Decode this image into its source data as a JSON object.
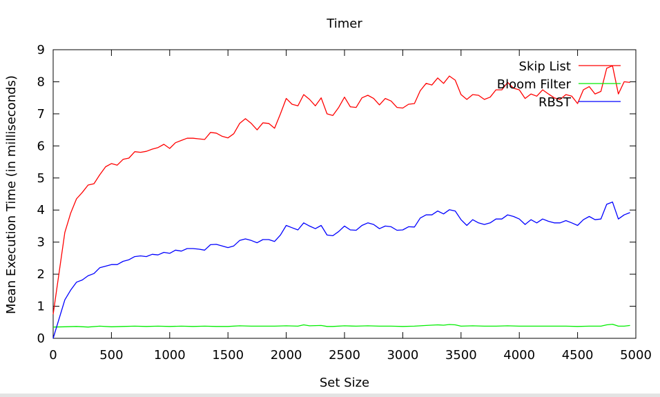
{
  "chart_data": {
    "type": "line",
    "title": "Timer",
    "xlabel": "Set Size",
    "ylabel": "Mean Execution Time (in milliseconds)",
    "xlim": [
      0,
      5000
    ],
    "ylim": [
      0,
      9
    ],
    "xticks": [
      0,
      500,
      1000,
      1500,
      2000,
      2500,
      3000,
      3500,
      4000,
      4500,
      5000
    ],
    "yticks": [
      0,
      1,
      2,
      3,
      4,
      5,
      6,
      7,
      8,
      9
    ],
    "xtick_labels": [
      "0",
      "500",
      "1000",
      "1500",
      "2000",
      "2500",
      "3000",
      "3500",
      "4000",
      "4500",
      "5000"
    ],
    "ytick_labels": [
      "0",
      "1",
      "2",
      "3",
      "4",
      "5",
      "6",
      "7",
      "8",
      "9"
    ],
    "grid": false,
    "legend_position": "top-right",
    "series": [
      {
        "name": "Skip List",
        "color": "#ff0000",
        "points": [
          [
            0,
            0.75
          ],
          [
            100,
            3.3
          ],
          [
            150,
            3.9
          ],
          [
            200,
            4.35
          ],
          [
            250,
            4.55
          ],
          [
            300,
            4.78
          ],
          [
            350,
            4.82
          ],
          [
            400,
            5.1
          ],
          [
            450,
            5.35
          ],
          [
            500,
            5.45
          ],
          [
            550,
            5.4
          ],
          [
            600,
            5.58
          ],
          [
            650,
            5.62
          ],
          [
            700,
            5.82
          ],
          [
            750,
            5.8
          ],
          [
            800,
            5.83
          ],
          [
            850,
            5.9
          ],
          [
            900,
            5.95
          ],
          [
            950,
            6.05
          ],
          [
            1000,
            5.92
          ],
          [
            1050,
            6.1
          ],
          [
            1100,
            6.17
          ],
          [
            1150,
            6.24
          ],
          [
            1200,
            6.24
          ],
          [
            1250,
            6.22
          ],
          [
            1300,
            6.2
          ],
          [
            1350,
            6.42
          ],
          [
            1400,
            6.4
          ],
          [
            1450,
            6.3
          ],
          [
            1500,
            6.25
          ],
          [
            1550,
            6.38
          ],
          [
            1600,
            6.7
          ],
          [
            1650,
            6.85
          ],
          [
            1700,
            6.7
          ],
          [
            1750,
            6.5
          ],
          [
            1800,
            6.72
          ],
          [
            1850,
            6.7
          ],
          [
            1900,
            6.55
          ],
          [
            1950,
            7.0
          ],
          [
            2000,
            7.48
          ],
          [
            2050,
            7.3
          ],
          [
            2100,
            7.25
          ],
          [
            2150,
            7.6
          ],
          [
            2200,
            7.45
          ],
          [
            2250,
            7.25
          ],
          [
            2300,
            7.5
          ],
          [
            2350,
            7.0
          ],
          [
            2400,
            6.95
          ],
          [
            2450,
            7.2
          ],
          [
            2500,
            7.52
          ],
          [
            2550,
            7.22
          ],
          [
            2600,
            7.2
          ],
          [
            2650,
            7.5
          ],
          [
            2700,
            7.58
          ],
          [
            2750,
            7.48
          ],
          [
            2800,
            7.28
          ],
          [
            2850,
            7.48
          ],
          [
            2900,
            7.4
          ],
          [
            2950,
            7.2
          ],
          [
            3000,
            7.18
          ],
          [
            3050,
            7.3
          ],
          [
            3100,
            7.32
          ],
          [
            3150,
            7.72
          ],
          [
            3200,
            7.95
          ],
          [
            3250,
            7.9
          ],
          [
            3300,
            8.12
          ],
          [
            3350,
            7.95
          ],
          [
            3400,
            8.18
          ],
          [
            3450,
            8.05
          ],
          [
            3500,
            7.6
          ],
          [
            3550,
            7.45
          ],
          [
            3600,
            7.6
          ],
          [
            3650,
            7.58
          ],
          [
            3700,
            7.45
          ],
          [
            3750,
            7.52
          ],
          [
            3800,
            7.75
          ],
          [
            3850,
            7.75
          ],
          [
            3900,
            7.98
          ],
          [
            3950,
            7.8
          ],
          [
            4000,
            7.75
          ],
          [
            4050,
            7.48
          ],
          [
            4100,
            7.62
          ],
          [
            4150,
            7.55
          ],
          [
            4200,
            7.75
          ],
          [
            4250,
            7.62
          ],
          [
            4300,
            7.5
          ],
          [
            4350,
            7.45
          ],
          [
            4400,
            7.6
          ],
          [
            4450,
            7.55
          ],
          [
            4500,
            7.32
          ],
          [
            4550,
            7.75
          ],
          [
            4600,
            7.85
          ],
          [
            4650,
            7.62
          ],
          [
            4700,
            7.7
          ],
          [
            4750,
            8.42
          ],
          [
            4800,
            8.5
          ],
          [
            4850,
            7.62
          ],
          [
            4900,
            8.0
          ],
          [
            4950,
            7.98
          ]
        ]
      },
      {
        "name": "Bloom Filter",
        "color": "#00ee00",
        "points": [
          [
            0,
            0.35
          ],
          [
            100,
            0.36
          ],
          [
            200,
            0.37
          ],
          [
            300,
            0.35
          ],
          [
            400,
            0.38
          ],
          [
            500,
            0.36
          ],
          [
            600,
            0.37
          ],
          [
            700,
            0.38
          ],
          [
            800,
            0.37
          ],
          [
            900,
            0.38
          ],
          [
            1000,
            0.37
          ],
          [
            1100,
            0.38
          ],
          [
            1200,
            0.37
          ],
          [
            1300,
            0.38
          ],
          [
            1400,
            0.37
          ],
          [
            1500,
            0.37
          ],
          [
            1600,
            0.39
          ],
          [
            1700,
            0.38
          ],
          [
            1800,
            0.38
          ],
          [
            1900,
            0.38
          ],
          [
            2000,
            0.39
          ],
          [
            2100,
            0.38
          ],
          [
            2150,
            0.42
          ],
          [
            2200,
            0.39
          ],
          [
            2300,
            0.4
          ],
          [
            2350,
            0.37
          ],
          [
            2400,
            0.37
          ],
          [
            2500,
            0.39
          ],
          [
            2600,
            0.38
          ],
          [
            2700,
            0.39
          ],
          [
            2800,
            0.38
          ],
          [
            2900,
            0.38
          ],
          [
            3000,
            0.37
          ],
          [
            3100,
            0.38
          ],
          [
            3200,
            0.4
          ],
          [
            3300,
            0.42
          ],
          [
            3350,
            0.41
          ],
          [
            3400,
            0.43
          ],
          [
            3450,
            0.42
          ],
          [
            3500,
            0.38
          ],
          [
            3600,
            0.39
          ],
          [
            3700,
            0.38
          ],
          [
            3800,
            0.38
          ],
          [
            3900,
            0.39
          ],
          [
            4000,
            0.38
          ],
          [
            4100,
            0.38
          ],
          [
            4200,
            0.38
          ],
          [
            4300,
            0.38
          ],
          [
            4400,
            0.38
          ],
          [
            4500,
            0.37
          ],
          [
            4600,
            0.38
          ],
          [
            4700,
            0.38
          ],
          [
            4750,
            0.42
          ],
          [
            4800,
            0.44
          ],
          [
            4850,
            0.38
          ],
          [
            4900,
            0.38
          ],
          [
            4950,
            0.4
          ]
        ]
      },
      {
        "name": "RBST",
        "color": "#0000ff",
        "points": [
          [
            0,
            0.0
          ],
          [
            100,
            1.2
          ],
          [
            150,
            1.5
          ],
          [
            200,
            1.75
          ],
          [
            250,
            1.82
          ],
          [
            300,
            1.95
          ],
          [
            350,
            2.02
          ],
          [
            400,
            2.2
          ],
          [
            450,
            2.25
          ],
          [
            500,
            2.3
          ],
          [
            550,
            2.3
          ],
          [
            600,
            2.4
          ],
          [
            650,
            2.45
          ],
          [
            700,
            2.55
          ],
          [
            750,
            2.57
          ],
          [
            800,
            2.55
          ],
          [
            850,
            2.62
          ],
          [
            900,
            2.6
          ],
          [
            950,
            2.68
          ],
          [
            1000,
            2.65
          ],
          [
            1050,
            2.75
          ],
          [
            1100,
            2.72
          ],
          [
            1150,
            2.8
          ],
          [
            1200,
            2.8
          ],
          [
            1250,
            2.78
          ],
          [
            1300,
            2.75
          ],
          [
            1350,
            2.92
          ],
          [
            1400,
            2.93
          ],
          [
            1450,
            2.88
          ],
          [
            1500,
            2.83
          ],
          [
            1550,
            2.88
          ],
          [
            1600,
            3.05
          ],
          [
            1650,
            3.1
          ],
          [
            1700,
            3.05
          ],
          [
            1750,
            2.98
          ],
          [
            1800,
            3.08
          ],
          [
            1850,
            3.08
          ],
          [
            1900,
            3.02
          ],
          [
            1950,
            3.22
          ],
          [
            2000,
            3.52
          ],
          [
            2050,
            3.45
          ],
          [
            2100,
            3.38
          ],
          [
            2150,
            3.6
          ],
          [
            2200,
            3.5
          ],
          [
            2250,
            3.42
          ],
          [
            2300,
            3.52
          ],
          [
            2350,
            3.22
          ],
          [
            2400,
            3.2
          ],
          [
            2450,
            3.33
          ],
          [
            2500,
            3.5
          ],
          [
            2550,
            3.38
          ],
          [
            2600,
            3.37
          ],
          [
            2650,
            3.52
          ],
          [
            2700,
            3.6
          ],
          [
            2750,
            3.55
          ],
          [
            2800,
            3.42
          ],
          [
            2850,
            3.5
          ],
          [
            2900,
            3.48
          ],
          [
            2950,
            3.37
          ],
          [
            3000,
            3.38
          ],
          [
            3050,
            3.48
          ],
          [
            3100,
            3.47
          ],
          [
            3150,
            3.75
          ],
          [
            3200,
            3.85
          ],
          [
            3250,
            3.85
          ],
          [
            3300,
            3.97
          ],
          [
            3350,
            3.88
          ],
          [
            3400,
            4.01
          ],
          [
            3450,
            3.97
          ],
          [
            3500,
            3.7
          ],
          [
            3550,
            3.52
          ],
          [
            3600,
            3.7
          ],
          [
            3650,
            3.6
          ],
          [
            3700,
            3.55
          ],
          [
            3750,
            3.6
          ],
          [
            3800,
            3.72
          ],
          [
            3850,
            3.72
          ],
          [
            3900,
            3.85
          ],
          [
            3950,
            3.8
          ],
          [
            4000,
            3.72
          ],
          [
            4050,
            3.55
          ],
          [
            4100,
            3.7
          ],
          [
            4150,
            3.6
          ],
          [
            4200,
            3.72
          ],
          [
            4250,
            3.65
          ],
          [
            4300,
            3.6
          ],
          [
            4350,
            3.6
          ],
          [
            4400,
            3.67
          ],
          [
            4450,
            3.6
          ],
          [
            4500,
            3.52
          ],
          [
            4550,
            3.7
          ],
          [
            4600,
            3.8
          ],
          [
            4650,
            3.7
          ],
          [
            4700,
            3.72
          ],
          [
            4750,
            4.18
          ],
          [
            4800,
            4.25
          ],
          [
            4850,
            3.72
          ],
          [
            4900,
            3.85
          ],
          [
            4950,
            3.92
          ]
        ]
      }
    ]
  }
}
